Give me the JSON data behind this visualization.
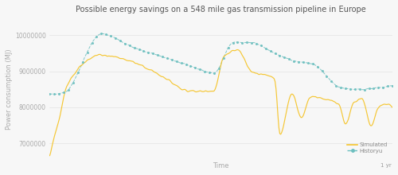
{
  "title": "Possible energy savings on a 548 mile gas transmission pipeline in Europe",
  "xlabel": "Time",
  "ylabel": "Power consumption (MJ)",
  "xlim": [
    0,
    365
  ],
  "ylim": [
    6500000,
    10500000
  ],
  "yticks": [
    7000000,
    8000000,
    9000000,
    10000000
  ],
  "ytick_labels": [
    "7000000",
    "8000000",
    "9000000",
    "10000000"
  ],
  "simulated_color": "#F5C42A",
  "historical_color": "#6CBFBF",
  "legend_labels": [
    "Simulated",
    "Historyu"
  ],
  "background_color": "#f7f7f7",
  "title_fontsize": 7.0,
  "axis_label_fontsize": 6.0,
  "tick_fontsize": 5.5,
  "hist_keypoints_x": [
    0,
    15,
    55,
    90,
    120,
    150,
    175,
    195,
    215,
    240,
    260,
    280,
    310,
    330,
    350,
    365
  ],
  "hist_keypoints_y": [
    8350000,
    8400000,
    10050000,
    9650000,
    9400000,
    9150000,
    8950000,
    9800000,
    9800000,
    9500000,
    9300000,
    9200000,
    8550000,
    8500000,
    8550000,
    8600000
  ],
  "sim_keypoints_x": [
    0,
    3,
    10,
    18,
    55,
    90,
    120,
    150,
    175,
    185,
    200,
    215,
    240,
    245,
    258,
    268,
    278,
    290,
    308,
    315,
    323,
    333,
    342,
    350,
    358,
    365
  ],
  "sim_keypoints_y": [
    6600000,
    7000000,
    7650000,
    8600000,
    9450000,
    9250000,
    8850000,
    8450000,
    8450000,
    9400000,
    9600000,
    9000000,
    8800000,
    7200000,
    8400000,
    7700000,
    8300000,
    8250000,
    8100000,
    7500000,
    8100000,
    8250000,
    7450000,
    8000000,
    8100000,
    8000000
  ]
}
